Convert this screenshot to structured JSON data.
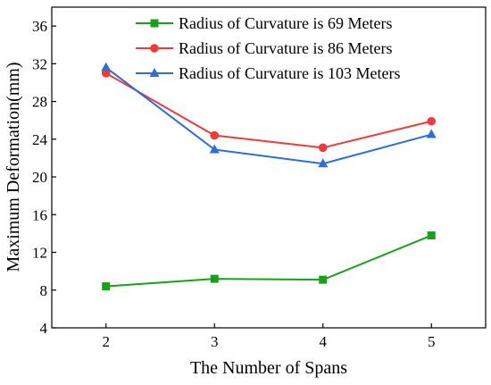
{
  "chart_data": {
    "type": "line",
    "title": "",
    "xlabel": "The Number of Spans",
    "ylabel": "Maximum Deformation(mm)",
    "x": [
      2,
      3,
      4,
      5
    ],
    "xlim": [
      1.5,
      5.5
    ],
    "ylim": [
      4,
      38
    ],
    "yticks": [
      4,
      8,
      12,
      16,
      20,
      24,
      28,
      32,
      36
    ],
    "grid": false,
    "legend_position": "top-right",
    "series": [
      {
        "name": "Radius of Curvature is 69 Meters",
        "color": "#17a317",
        "marker": "square",
        "values": [
          8.4,
          9.2,
          9.1,
          13.8
        ]
      },
      {
        "name": "Radius of Curvature is 86 Meters",
        "color": "#ef3a3a",
        "marker": "circle",
        "values": [
          31.0,
          24.4,
          23.1,
          25.9
        ]
      },
      {
        "name": "Radius of Curvature is 103 Meters",
        "color": "#2b6fd6",
        "marker": "triangle",
        "values": [
          31.6,
          22.9,
          21.4,
          24.5
        ]
      }
    ]
  }
}
